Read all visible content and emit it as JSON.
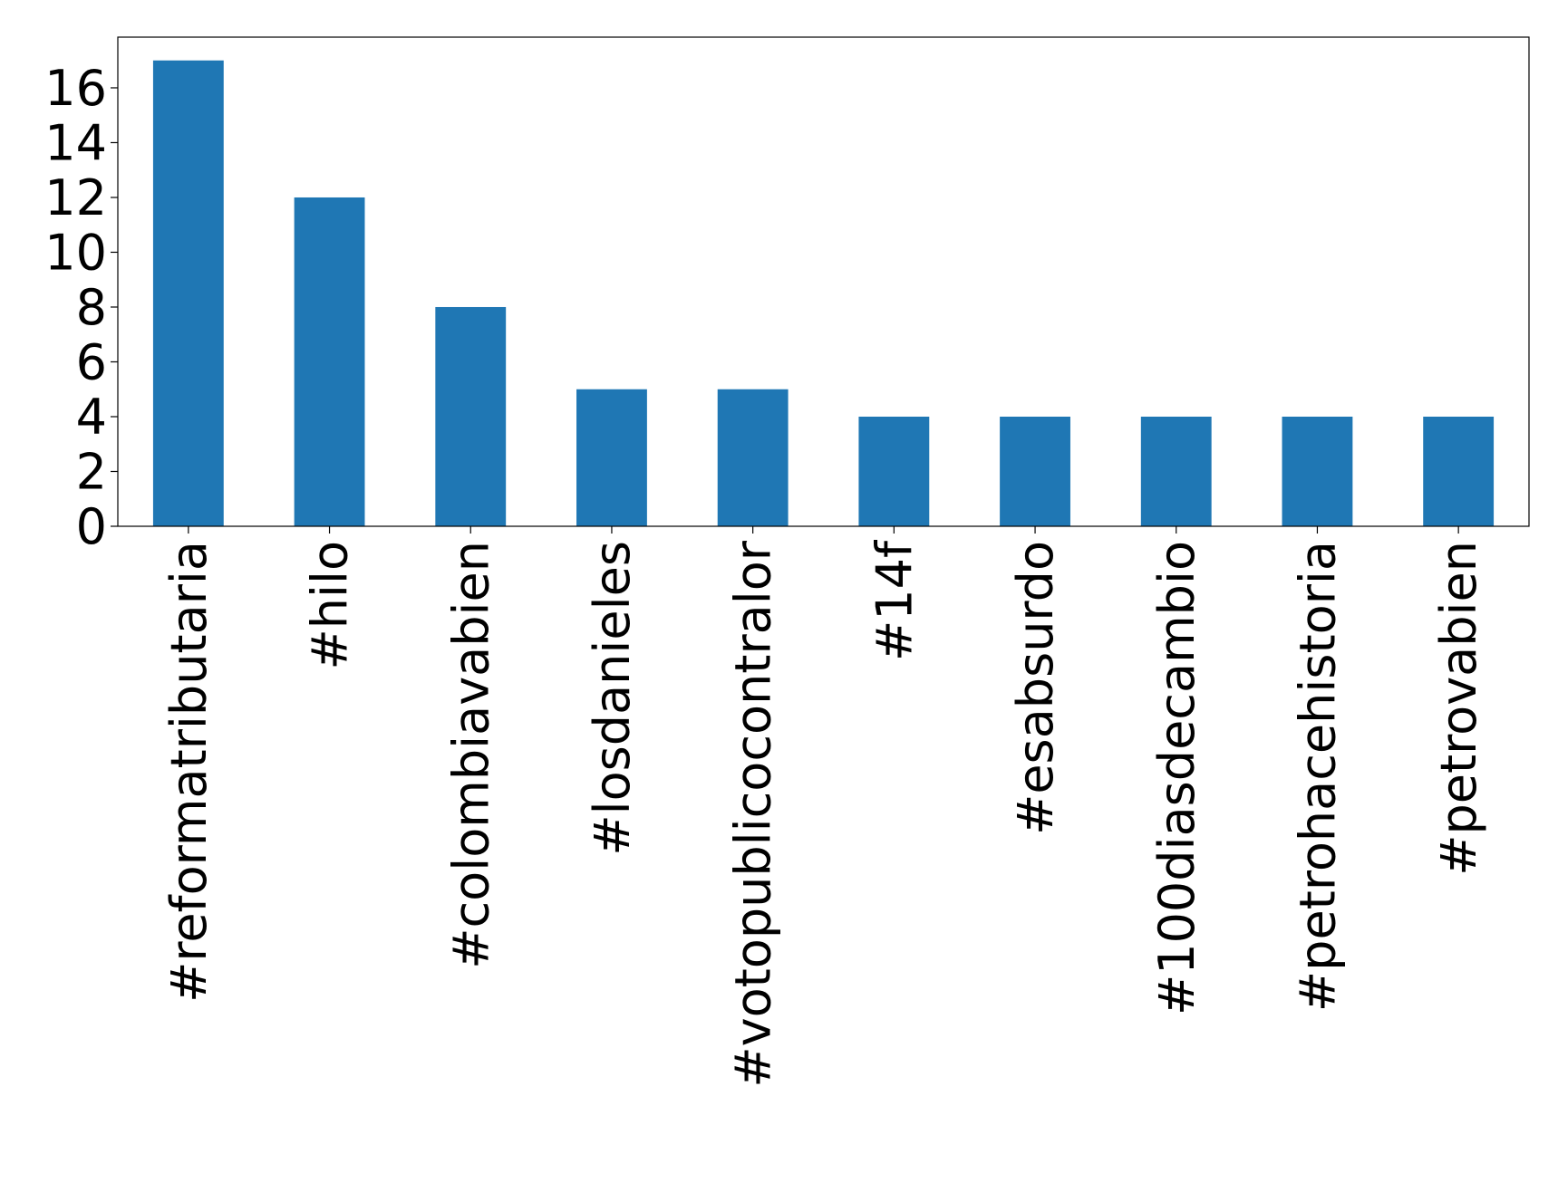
{
  "chart_data": {
    "type": "bar",
    "categories": [
      "#reformatributaria",
      "#hilo",
      "#colombiavabien",
      "#losdanieles",
      "#votopublicocontralor",
      "#14f",
      "#esabsurdo",
      "#100diasdecambio",
      "#petrohacehistoria",
      "#petrovabien"
    ],
    "values": [
      17,
      12,
      8,
      5,
      5,
      4,
      4,
      4,
      4,
      4
    ],
    "color": "#1f77b4",
    "ylim": [
      0,
      17.85
    ],
    "yticks": [
      0,
      2,
      4,
      6,
      8,
      10,
      12,
      14,
      16
    ],
    "grid": false
  }
}
